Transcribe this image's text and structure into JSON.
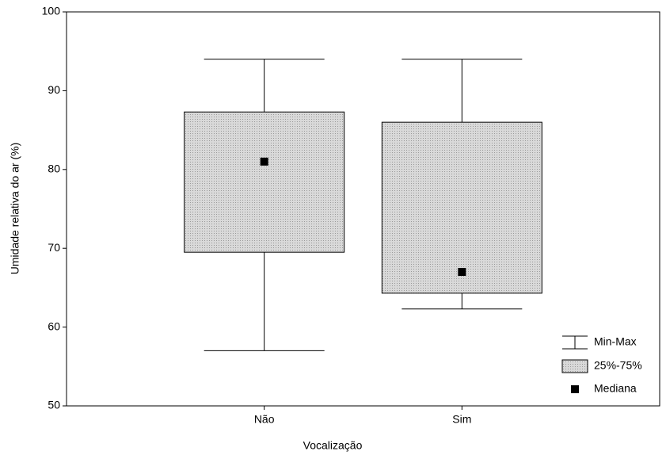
{
  "chart_data": {
    "type": "box",
    "x_label": "Vocalização",
    "y_label": "Umidade relativa do ar (%)",
    "categories": [
      "Não",
      "Sim"
    ],
    "min": [
      57,
      62.3
    ],
    "q1": [
      69.5,
      64.3
    ],
    "median": [
      81,
      67
    ],
    "q3": [
      87.3,
      86
    ],
    "max": [
      94,
      94
    ],
    "ylim": [
      50,
      100
    ],
    "yticks": [
      50,
      60,
      70,
      80,
      90,
      100
    ],
    "box_color": "#d9d9d9",
    "legend": {
      "whisker": "Min-Max",
      "box": "25%-75%",
      "median": "Mediana"
    },
    "legend_position": "lower right"
  }
}
